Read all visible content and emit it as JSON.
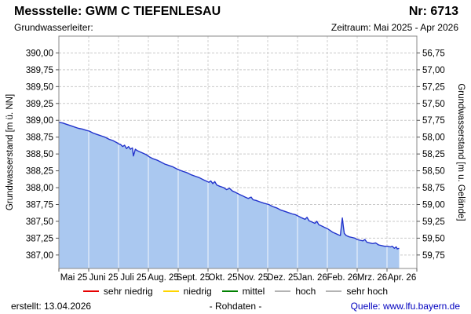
{
  "header": {
    "title": "Messstelle: GWM C TIEFENLESAU",
    "number": "Nr: 6713",
    "aquifer_label": "Grundwasserleiter:",
    "period_label": "Zeitraum: Mai 2025 - Apr 2026"
  },
  "chart_data": {
    "type": "area",
    "ylabel_left": "Grundwasserstand [m ü. NN]",
    "ylabel_right": "Grundwasserstand [m u. Gelände]",
    "x_tick_labels": [
      "Mai 25",
      "Juni 25",
      "Juli 25",
      "Aug. 25",
      "Sept. 25",
      "Okt. 25",
      "Nov. 25",
      "Dez. 25",
      "Jan. 26",
      "Feb. 26",
      "Mrz. 26",
      "Apr. 26"
    ],
    "ytick_values_left": [
      390.0,
      389.75,
      389.5,
      389.25,
      389.0,
      388.75,
      388.5,
      388.25,
      388.0,
      387.75,
      387.5,
      387.25,
      387.0
    ],
    "ytick_labels_left": [
      "390,00",
      "389,75",
      "389,50",
      "389,25",
      "389,00",
      "388,75",
      "388,50",
      "388,25",
      "388,00",
      "387,75",
      "387,50",
      "387,25",
      "387,00"
    ],
    "ytick_labels_right": [
      "56,75",
      "57,00",
      "57,25",
      "57,50",
      "57,75",
      "58,00",
      "58,25",
      "58,50",
      "58,75",
      "59,00",
      "59,25",
      "59,50",
      "59,75"
    ],
    "ylim_left": [
      386.8,
      390.25
    ],
    "ylim_right": [
      59.95,
      56.5
    ],
    "x_range_days": 365,
    "grid": true,
    "legend_position": "bottom",
    "line_color": "#2233cc",
    "fill_color": "#aac8f0",
    "series": [
      {
        "name": "Grundwasserstand",
        "unit": "m ü. NN",
        "points": [
          [
            0,
            388.97
          ],
          [
            4,
            388.96
          ],
          [
            8,
            388.94
          ],
          [
            12,
            388.92
          ],
          [
            16,
            388.9
          ],
          [
            20,
            388.88
          ],
          [
            24,
            388.87
          ],
          [
            28,
            388.85
          ],
          [
            31,
            388.84
          ],
          [
            35,
            388.81
          ],
          [
            39,
            388.79
          ],
          [
            43,
            388.77
          ],
          [
            47,
            388.75
          ],
          [
            51,
            388.72
          ],
          [
            55,
            388.7
          ],
          [
            59,
            388.67
          ],
          [
            61,
            388.65
          ],
          [
            63,
            388.64
          ],
          [
            65,
            388.61
          ],
          [
            67,
            388.63
          ],
          [
            69,
            388.58
          ],
          [
            71,
            388.61
          ],
          [
            73,
            388.57
          ],
          [
            75,
            388.59
          ],
          [
            76,
            388.47
          ],
          [
            77,
            388.52
          ],
          [
            78,
            388.57
          ],
          [
            80,
            388.55
          ],
          [
            83,
            388.53
          ],
          [
            86,
            388.51
          ],
          [
            89,
            388.49
          ],
          [
            92,
            388.46
          ],
          [
            96,
            388.43
          ],
          [
            100,
            388.41
          ],
          [
            104,
            388.38
          ],
          [
            108,
            388.35
          ],
          [
            112,
            388.33
          ],
          [
            116,
            388.31
          ],
          [
            120,
            388.28
          ],
          [
            123,
            388.26
          ],
          [
            127,
            388.24
          ],
          [
            131,
            388.22
          ],
          [
            135,
            388.19
          ],
          [
            139,
            388.17
          ],
          [
            143,
            388.15
          ],
          [
            147,
            388.12
          ],
          [
            150,
            388.1
          ],
          [
            153,
            388.08
          ],
          [
            155,
            388.1
          ],
          [
            157,
            388.06
          ],
          [
            159,
            388.09
          ],
          [
            161,
            388.04
          ],
          [
            164,
            388.02
          ],
          [
            168,
            388.0
          ],
          [
            171,
            387.97
          ],
          [
            174,
            387.99
          ],
          [
            177,
            387.95
          ],
          [
            180,
            387.93
          ],
          [
            184,
            387.9
          ],
          [
            187,
            387.88
          ],
          [
            190,
            387.86
          ],
          [
            193,
            387.84
          ],
          [
            196,
            387.86
          ],
          [
            198,
            387.82
          ],
          [
            201,
            387.81
          ],
          [
            205,
            387.79
          ],
          [
            209,
            387.77
          ],
          [
            214,
            387.75
          ],
          [
            218,
            387.72
          ],
          [
            222,
            387.7
          ],
          [
            226,
            387.67
          ],
          [
            230,
            387.65
          ],
          [
            234,
            387.63
          ],
          [
            238,
            387.61
          ],
          [
            241,
            387.6
          ],
          [
            245,
            387.57
          ],
          [
            248,
            387.55
          ],
          [
            251,
            387.53
          ],
          [
            253,
            387.56
          ],
          [
            255,
            387.51
          ],
          [
            258,
            387.49
          ],
          [
            261,
            387.47
          ],
          [
            263,
            387.5
          ],
          [
            265,
            387.45
          ],
          [
            268,
            387.43
          ],
          [
            271,
            387.41
          ],
          [
            274,
            387.39
          ],
          [
            276,
            387.37
          ],
          [
            279,
            387.34
          ],
          [
            282,
            387.32
          ],
          [
            285,
            387.3
          ],
          [
            287,
            387.29
          ],
          [
            288,
            387.42
          ],
          [
            289,
            387.55
          ],
          [
            290,
            387.43
          ],
          [
            291,
            387.32
          ],
          [
            293,
            387.29
          ],
          [
            296,
            387.27
          ],
          [
            299,
            387.26
          ],
          [
            302,
            387.25
          ],
          [
            304,
            387.23
          ],
          [
            307,
            387.22
          ],
          [
            310,
            387.21
          ],
          [
            312,
            387.23
          ],
          [
            314,
            387.19
          ],
          [
            317,
            387.18
          ],
          [
            320,
            387.17
          ],
          [
            323,
            387.18
          ],
          [
            326,
            387.15
          ],
          [
            329,
            387.14
          ],
          [
            332,
            387.13
          ],
          [
            335,
            387.13
          ],
          [
            338,
            387.12
          ],
          [
            340,
            387.13
          ],
          [
            342,
            387.1
          ],
          [
            344,
            387.12
          ],
          [
            345,
            387.09
          ],
          [
            347,
            387.1
          ]
        ]
      }
    ]
  },
  "legend": {
    "items": [
      {
        "label": "sehr niedrig",
        "color": "#e60000"
      },
      {
        "label": "niedrig",
        "color": "#ffd500"
      },
      {
        "label": "mittel",
        "color": "#008000"
      },
      {
        "label": "hoch",
        "color": "#b3b3b3"
      },
      {
        "label": "sehr hoch",
        "color": "#b3b3b3"
      }
    ]
  },
  "footer": {
    "created": "erstellt:  13.04.2026",
    "center": "- Rohdaten -",
    "source": "Quelle: www.lfu.bayern.de"
  }
}
